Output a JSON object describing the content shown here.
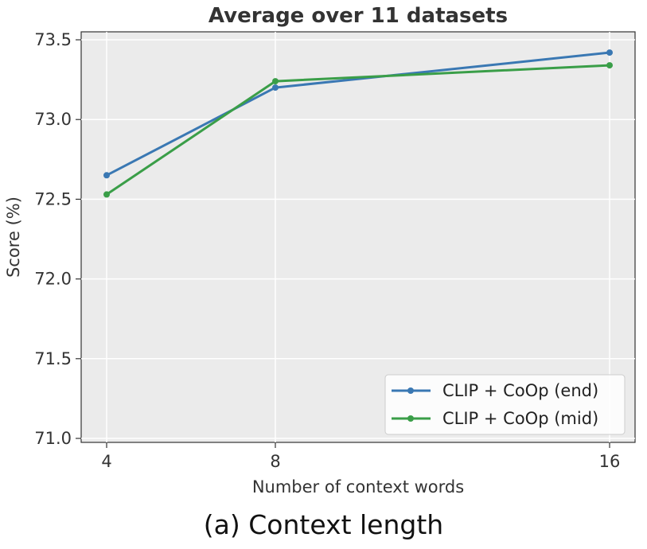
{
  "chart_data": {
    "type": "line",
    "title": "Average over 11 datasets",
    "xlabel": "Number of context words",
    "ylabel": "Score (%)",
    "x": [
      4,
      8,
      16
    ],
    "x_tick_labels": [
      "4",
      "8",
      "16"
    ],
    "ylim": [
      71.0,
      73.5
    ],
    "y_ticks": [
      71.0,
      71.5,
      72.0,
      72.5,
      73.0,
      73.5
    ],
    "y_tick_labels": [
      "71.0",
      "71.5",
      "72.0",
      "72.5",
      "73.0",
      "73.5"
    ],
    "grid": true,
    "legend_position": "lower-right",
    "series": [
      {
        "name": "CLIP + CoOp (end)",
        "values": [
          72.65,
          73.2,
          73.42
        ],
        "color": "#3a78b3"
      },
      {
        "name": "CLIP + CoOp (mid)",
        "values": [
          72.53,
          73.24,
          73.34
        ],
        "color": "#3a9e48"
      }
    ]
  },
  "caption": "(a) Context length",
  "colors": {
    "plot_background": "#ebebeb",
    "grid": "#ffffff"
  }
}
